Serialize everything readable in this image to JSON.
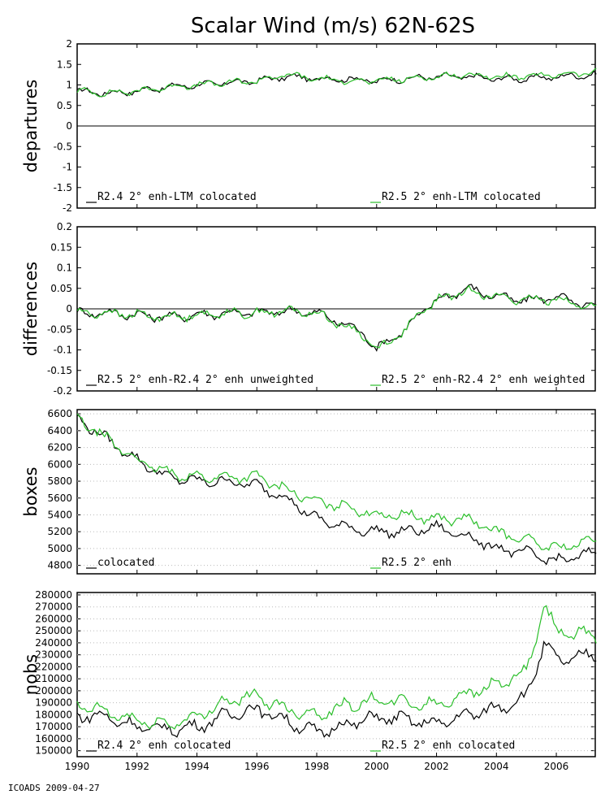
{
  "title": "Scalar Wind (m/s) 62N-62S",
  "footer": "ICOADS 2009-04-27",
  "colors": {
    "black_series": "#000000",
    "green_series": "#2bbf2b",
    "zero_line": "#000000"
  },
  "chart_data": [
    {
      "type": "line",
      "ylabel": "departures",
      "ylim": [
        -2,
        2
      ],
      "yticks": [
        "2",
        "1.5",
        "1",
        "0.5",
        "0",
        "-0.5",
        "-1",
        "-1.5",
        "-2"
      ],
      "zero_line": 0,
      "legend_left": "R2.4 2° enh-LTM colocated",
      "legend_right": "R2.5 2° enh-LTM colocated",
      "series": [
        {
          "name": "R2.4 2° enh-LTM colocated",
          "color": "#000000",
          "x": [
            1990,
            1991,
            1992,
            1993,
            1994,
            1995,
            1996,
            1997,
            1998,
            1999,
            2000,
            2001,
            2002,
            2003,
            2004,
            2005,
            2006,
            2007.3
          ],
          "values": [
            0.85,
            0.8,
            0.85,
            0.95,
            1.0,
            1.05,
            1.1,
            1.2,
            1.15,
            1.15,
            1.1,
            1.15,
            1.2,
            1.2,
            1.15,
            1.15,
            1.2,
            1.25
          ]
        },
        {
          "name": "R2.5 2° enh-LTM colocated",
          "color": "#2bbf2b",
          "x": [
            1990,
            1991,
            1992,
            1993,
            1994,
            1995,
            1996,
            1997,
            1998,
            1999,
            2000,
            2001,
            2002,
            2003,
            2004,
            2005,
            2006,
            2007.3
          ],
          "values": [
            0.85,
            0.8,
            0.85,
            0.95,
            1.0,
            1.05,
            1.1,
            1.25,
            1.15,
            1.1,
            1.1,
            1.15,
            1.2,
            1.25,
            1.2,
            1.2,
            1.25,
            1.3
          ]
        }
      ]
    },
    {
      "type": "line",
      "ylabel": "differences",
      "ylim": [
        -0.2,
        0.2
      ],
      "yticks": [
        "0.2",
        "0.15",
        "0.1",
        "0.05",
        "0",
        "-0.05",
        "-0.1",
        "-0.15",
        "-0.2"
      ],
      "zero_line": 0,
      "legend_left": "R2.5 2° enh-R2.4 2° enh unweighted",
      "legend_right": "R2.5 2° enh-R2.4 2° enh weighted",
      "series": [
        {
          "name": "R2.5 2° enh-R2.4 2° enh unweighted",
          "color": "#000000",
          "x": [
            1990,
            1991,
            1992,
            1993,
            1994,
            1995,
            1996,
            1997,
            1998,
            1999,
            1999.6,
            2000,
            2000.5,
            2001,
            2001.6,
            2002,
            2003,
            2004,
            2005,
            2006,
            2007.3
          ],
          "values": [
            -0.01,
            -0.01,
            -0.015,
            -0.02,
            -0.015,
            -0.01,
            -0.01,
            -0.005,
            -0.01,
            -0.04,
            -0.06,
            -0.1,
            -0.07,
            -0.05,
            0.0,
            0.02,
            0.05,
            0.03,
            0.02,
            0.03,
            0.0
          ]
        },
        {
          "name": "R2.5 2° enh-R2.4 2° enh weighted",
          "color": "#2bbf2b",
          "x": [
            1990,
            1991,
            1992,
            1993,
            1994,
            1995,
            1996,
            1997,
            1998,
            1999,
            1999.6,
            2000,
            2000.5,
            2001,
            2001.6,
            2002,
            2003,
            2004,
            2005,
            2006,
            2007.3
          ],
          "values": [
            -0.01,
            -0.01,
            -0.015,
            -0.02,
            -0.015,
            -0.01,
            -0.01,
            -0.005,
            -0.01,
            -0.045,
            -0.065,
            -0.1,
            -0.075,
            -0.05,
            0.0,
            0.02,
            0.045,
            0.03,
            0.02,
            0.025,
            0.0
          ]
        }
      ]
    },
    {
      "type": "line",
      "ylabel": "boxes",
      "ylim": [
        4700,
        6650
      ],
      "yticks": [
        "6600",
        "6400",
        "6200",
        "6000",
        "5800",
        "5600",
        "5400",
        "5200",
        "5000",
        "4800"
      ],
      "legend_left": "colocated",
      "legend_right": "R2.5 2° enh",
      "series": [
        {
          "name": "colocated",
          "color": "#000000",
          "x": [
            1990,
            1991,
            1992,
            1993,
            1994,
            1995,
            1996,
            1997,
            1998,
            1999,
            2000,
            2001,
            2002,
            2003,
            2004,
            2005,
            2006,
            2007.3
          ],
          "values": [
            6550,
            6300,
            6050,
            5850,
            5800,
            5800,
            5750,
            5600,
            5350,
            5250,
            5200,
            5200,
            5250,
            5150,
            5000,
            4950,
            4850,
            4950
          ]
        },
        {
          "name": "R2.5 2° enh",
          "color": "#2bbf2b",
          "x": [
            1990,
            1991,
            1992,
            1993,
            1994,
            1995,
            1996,
            1997,
            1998,
            1999,
            2000,
            2001,
            2002,
            2003,
            2004,
            2005,
            2006,
            2007.3
          ],
          "values": [
            6550,
            6300,
            6050,
            5900,
            5850,
            5850,
            5850,
            5700,
            5550,
            5500,
            5400,
            5400,
            5350,
            5350,
            5200,
            5100,
            5000,
            5100
          ]
        }
      ]
    },
    {
      "type": "line",
      "ylabel": "nobs",
      "ylim": [
        145000,
        282000
      ],
      "yticks": [
        "280000",
        "270000",
        "260000",
        "250000",
        "240000",
        "230000",
        "220000",
        "210000",
        "200000",
        "190000",
        "180000",
        "170000",
        "160000",
        "150000"
      ],
      "legend_left": "R2.4 2° enh colocated",
      "legend_right": "R2.5 2° enh colocated",
      "xticks": [
        "1990",
        "1992",
        "1994",
        "1996",
        "1998",
        "2000",
        "2002",
        "2004",
        "2006"
      ],
      "xlim": [
        1990,
        2007.3
      ],
      "series": [
        {
          "name": "R2.4 2° enh colocated",
          "color": "#000000",
          "x": [
            1990,
            1991,
            1992,
            1993,
            1994,
            1995,
            1996,
            1997,
            1998,
            1999,
            2000,
            2001,
            2002,
            2003,
            2004,
            2005,
            2005.6,
            2006,
            2007.3
          ],
          "values": [
            180000,
            178000,
            170000,
            168000,
            170000,
            180000,
            185000,
            175000,
            165000,
            172000,
            178000,
            176000,
            172000,
            180000,
            185000,
            195000,
            240000,
            225000,
            230000
          ]
        },
        {
          "name": "R2.5 2° enh colocated",
          "color": "#2bbf2b",
          "x": [
            1990,
            1991,
            1992,
            1993,
            1994,
            1995,
            1996,
            1997,
            1998,
            1999,
            2000,
            2001,
            2002,
            2003,
            2004,
            2005,
            2005.6,
            2006,
            2007.3
          ],
          "values": [
            188000,
            182000,
            175000,
            172000,
            178000,
            192000,
            195000,
            185000,
            180000,
            188000,
            192000,
            190000,
            188000,
            198000,
            205000,
            215000,
            270000,
            250000,
            245000
          ]
        }
      ]
    }
  ]
}
